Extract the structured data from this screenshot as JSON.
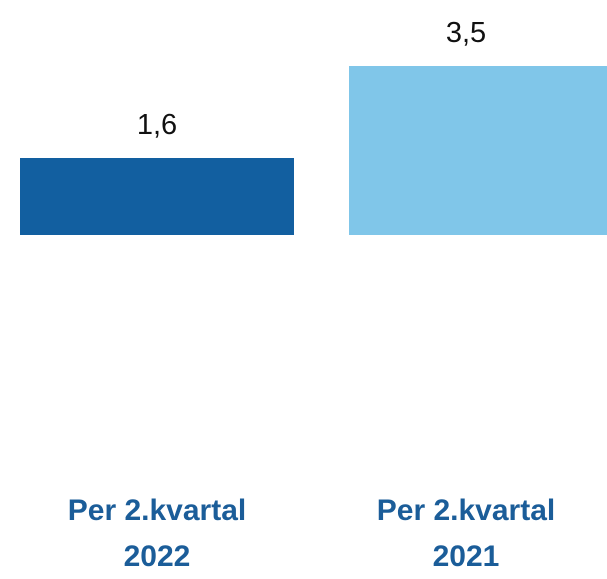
{
  "chart_data": {
    "type": "bar",
    "categories": [
      "Per 2.kvartal 2022",
      "Per 2.kvartal 2021"
    ],
    "values": [
      1.6,
      3.5
    ],
    "value_labels": [
      "1,6",
      "3,5"
    ],
    "colors": [
      "#125fa0",
      "#80c6e9"
    ],
    "ylim": [
      0,
      3.5
    ]
  }
}
